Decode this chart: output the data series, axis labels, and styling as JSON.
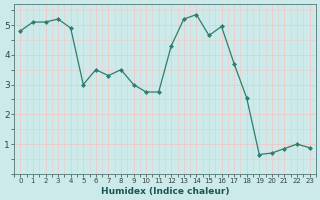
{
  "x": [
    0,
    1,
    2,
    3,
    4,
    5,
    6,
    7,
    8,
    9,
    10,
    11,
    12,
    13,
    14,
    15,
    16,
    17,
    18,
    19,
    20,
    21,
    22,
    23
  ],
  "y": [
    4.8,
    5.1,
    5.1,
    5.2,
    4.9,
    3.0,
    3.5,
    3.3,
    3.5,
    3.0,
    2.75,
    2.75,
    4.3,
    5.2,
    5.35,
    4.65,
    4.95,
    3.7,
    2.55,
    0.65,
    0.7,
    0.85,
    1.0,
    0.88
  ],
  "line_color": "#2e7d6e",
  "marker": "D",
  "marker_size": 2.0,
  "bg_color": "#cceaea",
  "grid_color_major": "#f0c8c8",
  "grid_color_minor": "#f0c8c8",
  "xlabel": "Humidex (Indice chaleur)",
  "xlim": [
    -0.5,
    23.5
  ],
  "ylim": [
    0,
    5.7
  ],
  "yticks": [
    1,
    2,
    3,
    4,
    5
  ],
  "xticks": [
    0,
    1,
    2,
    3,
    4,
    5,
    6,
    7,
    8,
    9,
    10,
    11,
    12,
    13,
    14,
    15,
    16,
    17,
    18,
    19,
    20,
    21,
    22,
    23
  ],
  "xlabel_fontsize": 6.5,
  "xtick_fontsize": 5.0,
  "ytick_fontsize": 6.5,
  "linewidth": 0.9
}
